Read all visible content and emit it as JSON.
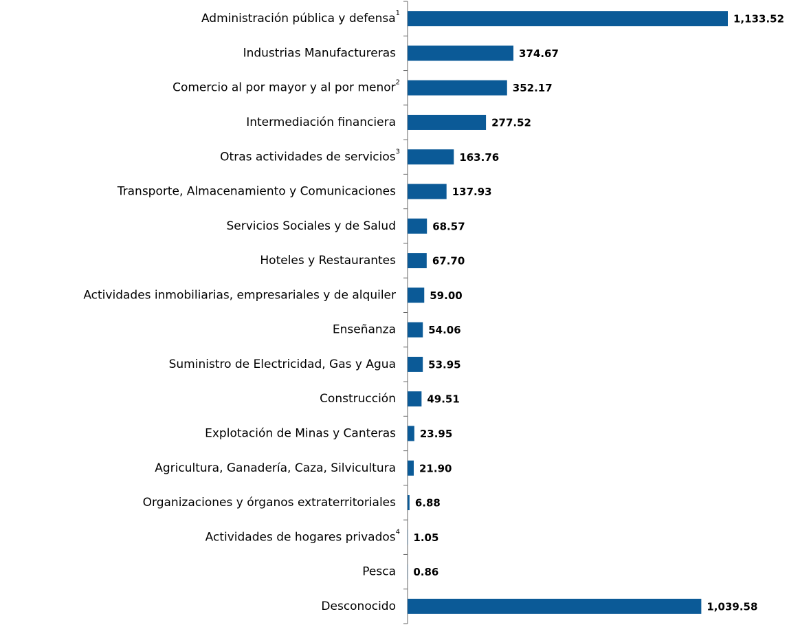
{
  "chart_data": {
    "type": "bar",
    "orientation": "horizontal",
    "color": "#0b5a97",
    "categories": [
      "Administración pública y defensa",
      "Industrias Manufactureras",
      "Comercio al por mayor y al por menor",
      "Intermediación financiera",
      "Otras actividades de servicios",
      "Transporte, Almacenamiento y Comunicaciones",
      "Servicios Sociales y de Salud",
      "Hoteles y Restaurantes",
      "Actividades inmobiliarias, empresariales y de alquiler",
      "Enseñanza",
      "Suministro de Electricidad, Gas y Agua",
      "Construcción",
      "Explotación de Minas y Canteras",
      "Agricultura, Ganadería, Caza, Silvicultura",
      "Organizaciones y órganos extraterritoriales",
      "Actividades de hogares privados",
      "Pesca",
      "Desconocido"
    ],
    "superscripts": [
      "1",
      null,
      "2",
      null,
      "3",
      null,
      null,
      null,
      null,
      null,
      null,
      null,
      null,
      null,
      null,
      "4",
      null,
      null
    ],
    "values": [
      1133.52,
      374.67,
      352.17,
      277.52,
      163.76,
      137.93,
      68.57,
      67.7,
      59.0,
      54.06,
      53.95,
      49.51,
      23.95,
      21.9,
      6.88,
      1.05,
      0.86,
      1039.58
    ],
    "value_labels": [
      "1,133.52",
      "374.67",
      "352.17",
      "277.52",
      "163.76",
      "137.93",
      "68.57",
      "67.70",
      "59.00",
      "54.06",
      "53.95",
      "49.51",
      "23.95",
      "21.90",
      "6.88",
      "1.05",
      "0.86",
      "1,039.58"
    ]
  }
}
